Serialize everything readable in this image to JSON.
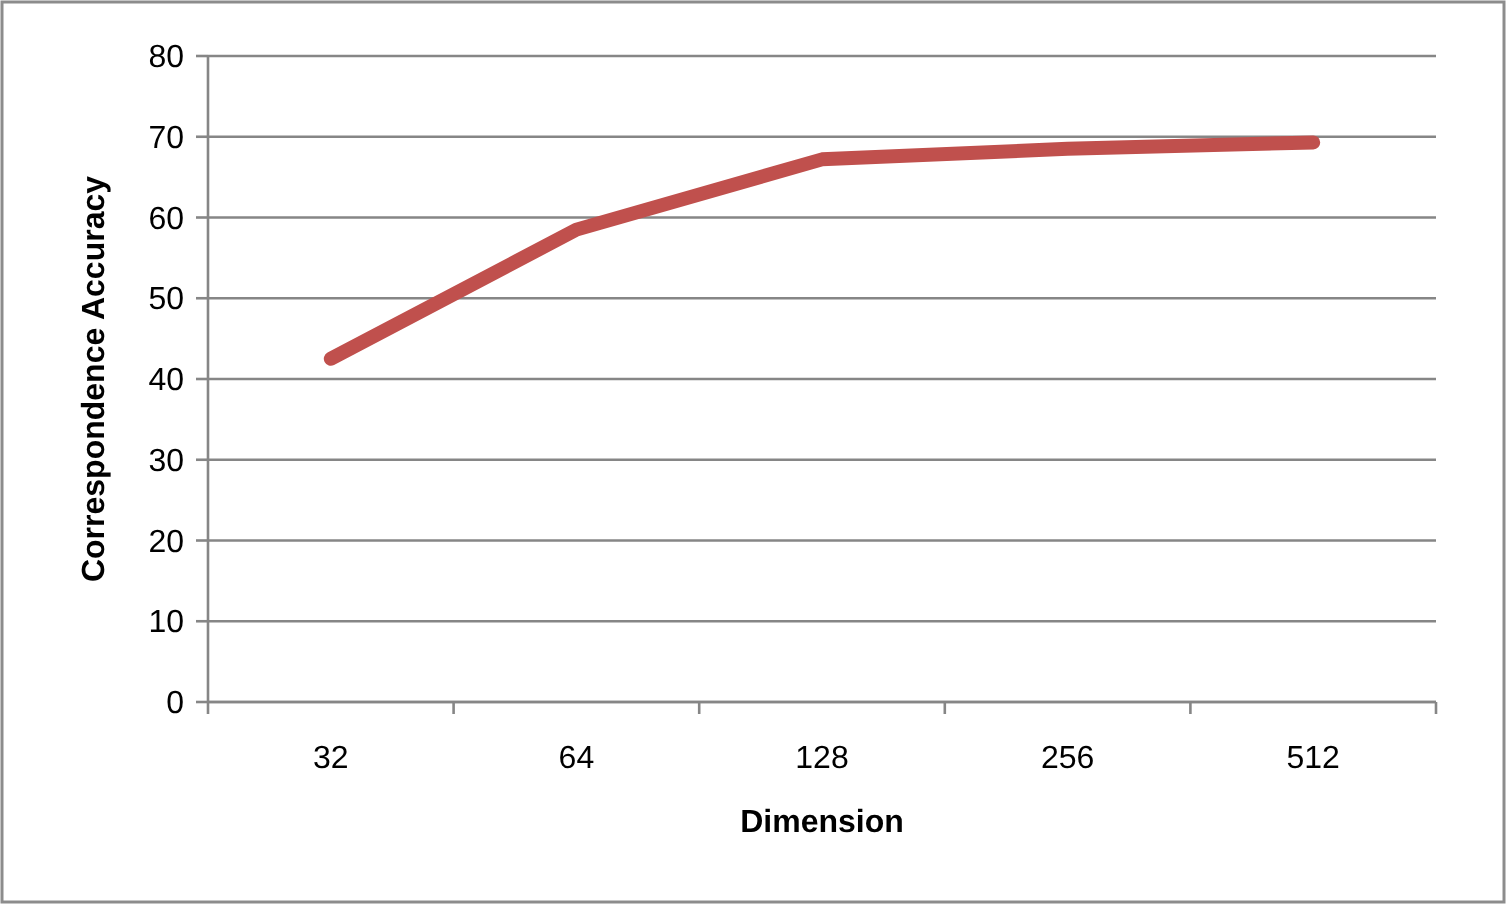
{
  "chart_data": {
    "type": "line",
    "xlabel": "Dimension",
    "ylabel": "Correspondence Accuracy",
    "categories": [
      "32",
      "64",
      "128",
      "256",
      "512"
    ],
    "series": [
      {
        "color": "#c0504d",
        "values": [
          42.5,
          58.5,
          67.2,
          68.5,
          69.3
        ]
      }
    ],
    "ylim": [
      0,
      80
    ],
    "yticks": [
      0,
      10,
      20,
      30,
      40,
      50,
      60,
      70,
      80
    ],
    "grid": "y",
    "marker": "none",
    "line_style": "solid"
  }
}
